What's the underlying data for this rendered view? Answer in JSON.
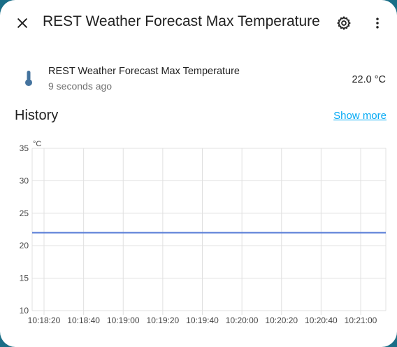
{
  "dialog": {
    "title": "REST Weather Forecast Max Temperature",
    "icons": {
      "close": "close-icon",
      "settings": "gear-icon",
      "more": "more-vertical-icon"
    }
  },
  "entity": {
    "icon": "thermometer-icon",
    "name": "REST Weather Forecast Max Temperature",
    "last_changed": "9 seconds ago",
    "state": "22.0 °C"
  },
  "history": {
    "title": "History",
    "show_more": "Show more"
  },
  "colors": {
    "accent": "#03a9f4",
    "series": "#5b7fd8",
    "icon": "#44739e",
    "backdrop": "#1a6e87"
  },
  "chart_data": {
    "type": "line",
    "y_unit": "°C",
    "ylim": [
      10,
      35
    ],
    "y_ticks": [
      "10",
      "15",
      "20",
      "25",
      "30",
      "35"
    ],
    "x_ticks": [
      "10:18:20",
      "10:18:40",
      "10:19:00",
      "10:19:20",
      "10:19:40",
      "10:20:00",
      "10:20:20",
      "10:20:40",
      "10:21:00"
    ],
    "grid": true,
    "series": [
      {
        "values": [
          22.0,
          22.0,
          22.0,
          22.0,
          22.0,
          22.0,
          22.0,
          22.0,
          22.0
        ]
      }
    ]
  }
}
